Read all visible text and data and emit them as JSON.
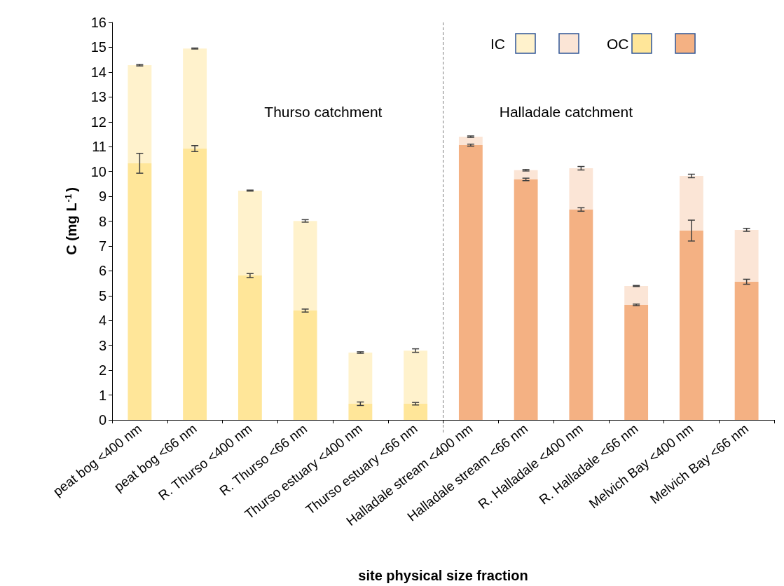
{
  "chart_data": {
    "type": "bar",
    "stacked": true,
    "xlabel": "site physical size fraction",
    "ylabel": "C (mg L$^{-1}$)",
    "categories": [
      "peat bog <400 nm",
      "peat bog <66 nm",
      "R. Thurso <400 nm",
      "R. Thurso <66 nm",
      "Thurso estuary <400 nm",
      "Thurso estuary <66 nm",
      "Halladale stream <400 nm",
      "Halladale stream <66 nm",
      "R. Halladale <400 nm",
      "R. Halladale <66 nm",
      "Melvich Bay <400 nm",
      "Melvich Bay <66 nm"
    ],
    "series": [
      {
        "name": "OC",
        "colors": [
          "#ffe699",
          "#ffe699",
          "#ffe699",
          "#ffe699",
          "#ffe699",
          "#ffe699",
          "#f4b183",
          "#f4b183",
          "#f4b183",
          "#f4b183",
          "#f4b183",
          "#f4b183"
        ],
        "values": [
          10.33,
          10.92,
          5.81,
          4.4,
          0.65,
          0.65,
          11.06,
          9.68,
          8.47,
          4.63,
          7.62,
          5.56
        ],
        "errors": [
          0.4,
          0.12,
          0.08,
          0.06,
          0.07,
          0.05,
          0.04,
          0.05,
          0.07,
          0.03,
          0.42,
          0.1
        ]
      },
      {
        "name": "IC",
        "colors": [
          "#fff2cc",
          "#fff2cc",
          "#fff2cc",
          "#fff2cc",
          "#fff2cc",
          "#fff2cc",
          "#fbe5d6",
          "#fbe5d6",
          "#fbe5d6",
          "#fbe5d6",
          "#fbe5d6",
          "#fbe5d6"
        ],
        "values": [
          3.95,
          4.03,
          3.42,
          3.61,
          2.06,
          2.14,
          0.34,
          0.37,
          1.66,
          0.76,
          2.2,
          2.09
        ],
        "errors": [
          0.03,
          0.02,
          0.02,
          0.05,
          0.03,
          0.07,
          0.03,
          0.03,
          0.07,
          0.02,
          0.07,
          0.06
        ]
      }
    ],
    "ylim": [
      0,
      16
    ],
    "yticks": [
      0,
      1,
      2,
      3,
      4,
      5,
      6,
      7,
      8,
      9,
      10,
      11,
      12,
      13,
      14,
      15,
      16
    ],
    "grid": false,
    "legend": "top right",
    "annotations": [
      "Thurso catchment",
      "Halladale catchment"
    ]
  }
}
